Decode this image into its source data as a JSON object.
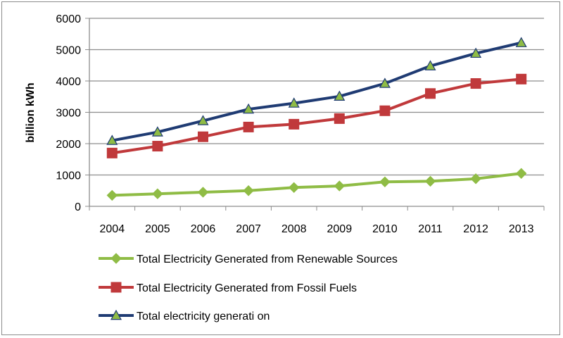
{
  "chart_data": {
    "type": "line",
    "title": "",
    "xlabel": "",
    "ylabel": "billion kWh",
    "categories": [
      "2004",
      "2005",
      "2006",
      "2007",
      "2008",
      "2009",
      "2010",
      "2011",
      "2012",
      "2013"
    ],
    "ylim": [
      0,
      6000
    ],
    "yticks": [
      "0",
      "1000",
      "2000",
      "3000",
      "4000",
      "5000",
      "6000"
    ],
    "grid": true,
    "legend_position": "bottom",
    "series": [
      {
        "name": "Total Electricity Generated from Renewable Sources",
        "values": [
          350,
          400,
          450,
          500,
          600,
          650,
          780,
          800,
          880,
          1050
        ],
        "color": "#8fbc45",
        "marker": "diamond"
      },
      {
        "name": "Total Electricity Generated from Fossil Fuels",
        "values": [
          1700,
          1920,
          2220,
          2530,
          2620,
          2800,
          3050,
          3600,
          3920,
          4060
        ],
        "color": "#c0393b",
        "marker": "square"
      },
      {
        "name": "Total electricity generati  on",
        "values": [
          2100,
          2370,
          2730,
          3100,
          3290,
          3510,
          3920,
          4480,
          4880,
          5220
        ],
        "color": "#1f3b73",
        "marker": "triangle",
        "marker_fill": "#8fbc45"
      }
    ]
  }
}
